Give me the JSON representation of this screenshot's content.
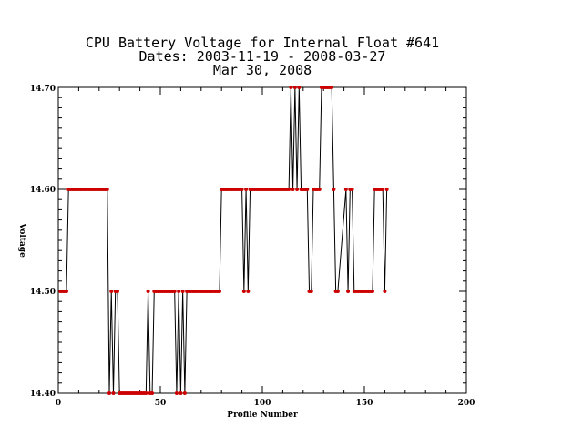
{
  "chart_data": {
    "type": "line",
    "title_lines": [
      "CPU Battery Voltage for Internal Float #641",
      "Dates:  2003-11-19 -  2008-03-27",
      "Mar 30, 2008"
    ],
    "xlabel": "Profile Number",
    "ylabel": "Voltage",
    "xlim": [
      0,
      200
    ],
    "ylim": [
      14.4,
      14.7
    ],
    "xticks": [
      "0",
      "50",
      "100",
      "150",
      "200"
    ],
    "yticks": [
      "14.40",
      "14.50",
      "14.60",
      "14.70"
    ],
    "line_color": "#000000",
    "marker_color": "#cc0000",
    "grid": false,
    "series": [
      {
        "x": [
          1,
          2,
          3,
          4,
          5,
          6,
          7,
          8,
          9,
          10,
          11,
          12,
          13,
          14,
          15,
          16,
          17,
          18,
          19,
          20,
          21,
          22,
          23,
          24,
          25,
          26,
          27,
          28,
          29,
          30,
          31,
          32,
          33,
          34,
          35,
          36,
          37,
          38,
          39,
          40,
          41,
          42,
          43,
          44,
          45,
          46,
          47,
          48,
          49,
          50,
          51,
          52,
          53,
          54,
          55,
          56,
          57,
          58,
          59,
          60,
          61,
          62,
          63,
          64,
          65,
          66,
          67,
          68,
          69,
          70,
          71,
          72,
          73,
          74,
          75,
          76,
          77,
          78,
          79,
          80,
          81,
          82,
          83,
          84,
          85,
          86,
          87,
          88,
          89,
          90,
          91,
          92,
          93,
          94,
          95,
          96,
          97,
          98,
          99,
          100,
          101,
          102,
          103,
          104,
          105,
          106,
          107,
          108,
          109,
          110,
          111,
          112,
          113,
          114,
          115,
          116,
          117,
          118,
          119,
          120,
          121,
          122,
          123,
          124,
          125,
          126,
          127,
          128,
          129,
          130,
          131,
          132,
          133,
          134,
          135,
          136,
          137,
          141,
          142,
          143,
          144,
          145,
          146,
          147,
          148,
          149,
          150,
          151,
          152,
          153,
          154,
          155,
          156,
          157,
          158,
          159,
          160,
          161
        ],
        "y": [
          14.5,
          14.5,
          14.5,
          14.5,
          14.6,
          14.6,
          14.6,
          14.6,
          14.6,
          14.6,
          14.6,
          14.6,
          14.6,
          14.6,
          14.6,
          14.6,
          14.6,
          14.6,
          14.6,
          14.6,
          14.6,
          14.6,
          14.6,
          14.6,
          14.4,
          14.5,
          14.4,
          14.5,
          14.5,
          14.4,
          14.4,
          14.4,
          14.4,
          14.4,
          14.4,
          14.4,
          14.4,
          14.4,
          14.4,
          14.4,
          14.4,
          14.4,
          14.4,
          14.5,
          14.4,
          14.4,
          14.5,
          14.5,
          14.5,
          14.5,
          14.5,
          14.5,
          14.5,
          14.5,
          14.5,
          14.5,
          14.5,
          14.4,
          14.5,
          14.4,
          14.5,
          14.4,
          14.5,
          14.5,
          14.5,
          14.5,
          14.5,
          14.5,
          14.5,
          14.5,
          14.5,
          14.5,
          14.5,
          14.5,
          14.5,
          14.5,
          14.5,
          14.5,
          14.5,
          14.6,
          14.6,
          14.6,
          14.6,
          14.6,
          14.6,
          14.6,
          14.6,
          14.6,
          14.6,
          14.6,
          14.5,
          14.6,
          14.5,
          14.6,
          14.6,
          14.6,
          14.6,
          14.6,
          14.6,
          14.6,
          14.6,
          14.6,
          14.6,
          14.6,
          14.6,
          14.6,
          14.6,
          14.6,
          14.6,
          14.6,
          14.6,
          14.6,
          14.6,
          14.7,
          14.6,
          14.7,
          14.6,
          14.7,
          14.6,
          14.6,
          14.6,
          14.6,
          14.5,
          14.5,
          14.6,
          14.6,
          14.6,
          14.6,
          14.7,
          14.7,
          14.7,
          14.7,
          14.7,
          14.7,
          14.6,
          14.5,
          14.5,
          14.6,
          14.5,
          14.6,
          14.6,
          14.5,
          14.5,
          14.5,
          14.5,
          14.5,
          14.5,
          14.5,
          14.5,
          14.5,
          14.5,
          14.6,
          14.6,
          14.6,
          14.6,
          14.6,
          14.5,
          14.6
        ]
      }
    ]
  }
}
